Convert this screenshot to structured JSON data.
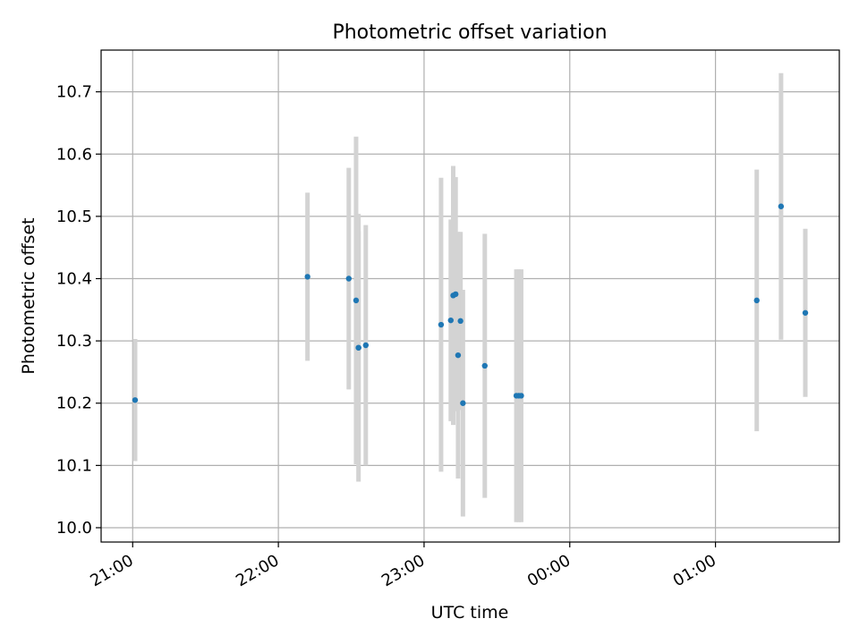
{
  "chart_data": {
    "type": "scatter",
    "title": "Photometric offset variation",
    "xlabel": "UTC time",
    "ylabel": "Photometric offset",
    "x_ticks": [
      "21:00",
      "22:00",
      "23:00",
      "00:00",
      "01:00"
    ],
    "y_ticks": [
      "10.0",
      "10.1",
      "10.2",
      "10.3",
      "10.4",
      "10.5",
      "10.6",
      "10.7"
    ],
    "xlim": [
      "20:47",
      "01:51"
    ],
    "ylim": [
      9.977,
      10.767
    ],
    "grid": true,
    "legend": "none",
    "colors": {
      "point": "#1f77b4",
      "errorbar": "#d3d3d3",
      "grid": "#b0b0b0"
    },
    "series": [
      {
        "points": [
          {
            "x": "21:01",
            "y": 10.205,
            "err": 0.098
          },
          {
            "x": "22:12",
            "y": 10.403,
            "err": 0.135
          },
          {
            "x": "22:29",
            "y": 10.4,
            "err": 0.178
          },
          {
            "x": "22:32",
            "y": 10.365,
            "err": 0.263
          },
          {
            "x": "22:33",
            "y": 10.289,
            "err": 0.187
          },
          {
            "x": "22:33",
            "y": 10.289,
            "err": 0.215
          },
          {
            "x": "22:36",
            "y": 10.293,
            "err": 0.193
          },
          {
            "x": "23:07",
            "y": 10.326,
            "err": 0.236
          },
          {
            "x": "23:11",
            "y": 10.333,
            "err": 0.162
          },
          {
            "x": "23:12",
            "y": 10.373,
            "err": 0.208
          },
          {
            "x": "23:13",
            "y": 10.375,
            "err": 0.188
          },
          {
            "x": "23:14",
            "y": 10.277,
            "err": 0.198
          },
          {
            "x": "23:15",
            "y": 10.332,
            "err": 0.143
          },
          {
            "x": "23:16",
            "y": 10.2,
            "err": 0.182
          },
          {
            "x": "23:25",
            "y": 10.26,
            "err": 0.212
          },
          {
            "x": "23:38",
            "y": 10.212,
            "err": 0.203
          },
          {
            "x": "23:39",
            "y": 10.212,
            "err": 0.203
          },
          {
            "x": "23:40",
            "y": 10.212,
            "err": 0.203
          },
          {
            "x": "01:17",
            "y": 10.365,
            "err": 0.21
          },
          {
            "x": "01:27",
            "y": 10.516,
            "err": 0.214
          },
          {
            "x": "01:37",
            "y": 10.345,
            "err": 0.135
          }
        ]
      }
    ]
  }
}
